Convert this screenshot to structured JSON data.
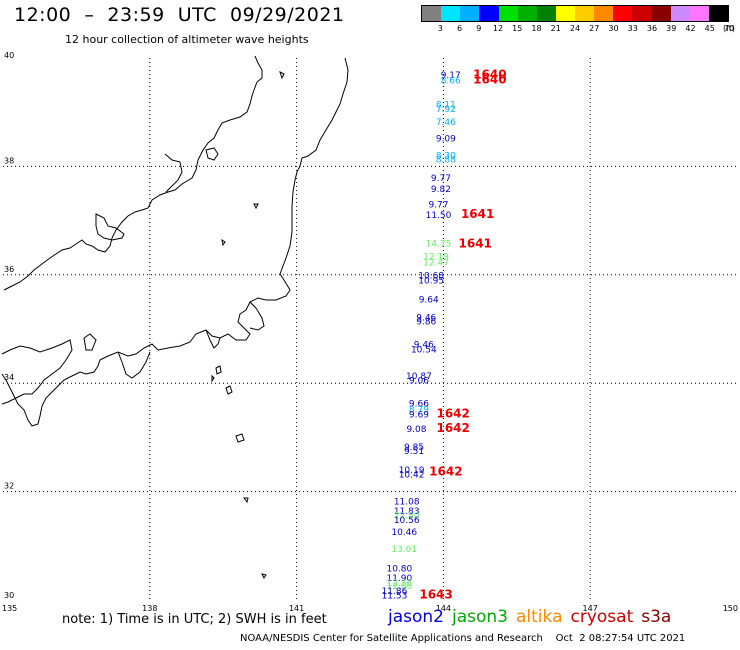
{
  "header": {
    "title": "12:00  –  23:59  UTC  09/29/2021",
    "subtitle": "12 hour collection of altimeter wave heights"
  },
  "legend": {
    "colors": [
      "#808080",
      "#00e5ff",
      "#00b0ff",
      "#0000ff",
      "#00e000",
      "#00b000",
      "#008000",
      "#ffff00",
      "#ffcc00",
      "#ff8800",
      "#ff0000",
      "#cc0000",
      "#880000",
      "#cc88ff",
      "#ff77ff",
      "#000000"
    ],
    "labels": [
      "3",
      "6",
      "9",
      "12",
      "15",
      "18",
      "21",
      "24",
      "27",
      "30",
      "33",
      "36",
      "39",
      "42",
      "45",
      "70",
      "(ft)"
    ]
  },
  "axes": {
    "lon_ticks": [
      "135",
      "138",
      "141",
      "144",
      "147",
      "150"
    ],
    "lat_ticks": [
      "30",
      "32",
      "34",
      "36",
      "38",
      "40"
    ]
  },
  "observations": [
    {
      "lat": 39.63,
      "lon": 144.15,
      "value": "9.17",
      "color": "#0000c8"
    },
    {
      "lat": 39.53,
      "lon": 144.15,
      "value": "8.66",
      "color": "#00b0ff"
    },
    {
      "lat": 39.09,
      "lon": 144.05,
      "value": "8.11",
      "color": "#00b0ff"
    },
    {
      "lat": 39.0,
      "lon": 144.05,
      "value": "7.92",
      "color": "#00b0ff"
    },
    {
      "lat": 38.76,
      "lon": 144.05,
      "value": "7.46",
      "color": "#00b0ff"
    },
    {
      "lat": 38.46,
      "lon": 144.05,
      "value": "9.09",
      "color": "#0000c8"
    },
    {
      "lat": 38.15,
      "lon": 144.05,
      "value": "8.30",
      "color": "#00b0ff"
    },
    {
      "lat": 38.07,
      "lon": 144.05,
      "value": "8.88",
      "color": "#00b0ff"
    },
    {
      "lat": 37.73,
      "lon": 143.95,
      "value": "9.77",
      "color": "#0000c8"
    },
    {
      "lat": 37.53,
      "lon": 143.95,
      "value": "9.82",
      "color": "#0000c8"
    },
    {
      "lat": 37.24,
      "lon": 143.9,
      "value": "9.77",
      "color": "#0000c8"
    },
    {
      "lat": 37.05,
      "lon": 143.9,
      "value": "11.50",
      "color": "#0000c8"
    },
    {
      "lat": 36.52,
      "lon": 143.9,
      "value": "14.75",
      "color": "#66ee66"
    },
    {
      "lat": 36.28,
      "lon": 143.85,
      "value": "12.19",
      "color": "#66ee66"
    },
    {
      "lat": 36.17,
      "lon": 143.85,
      "value": "12.47",
      "color": "#66ee66"
    },
    {
      "lat": 35.93,
      "lon": 143.75,
      "value": "10.68",
      "color": "#0000c8"
    },
    {
      "lat": 35.84,
      "lon": 143.75,
      "value": "10.95",
      "color": "#0000c8"
    },
    {
      "lat": 35.49,
      "lon": 143.7,
      "value": "9.64",
      "color": "#0000c8"
    },
    {
      "lat": 35.16,
      "lon": 143.65,
      "value": "9.46",
      "color": "#0000c8"
    },
    {
      "lat": 35.08,
      "lon": 143.65,
      "value": "9.86",
      "color": "#0000c8"
    },
    {
      "lat": 34.66,
      "lon": 143.6,
      "value": "9.46",
      "color": "#0000c8"
    },
    {
      "lat": 34.57,
      "lon": 143.6,
      "value": "10.54",
      "color": "#0000c8"
    },
    {
      "lat": 34.08,
      "lon": 143.5,
      "value": "10.87",
      "color": "#0000c8"
    },
    {
      "lat": 33.99,
      "lon": 143.5,
      "value": "9.06",
      "color": "#0000c8"
    },
    {
      "lat": 33.57,
      "lon": 143.5,
      "value": "9.66",
      "color": "#0000c8"
    },
    {
      "lat": 33.46,
      "lon": 143.5,
      "value": "8.79",
      "color": "#00b0ff"
    },
    {
      "lat": 33.37,
      "lon": 143.5,
      "value": "9.69",
      "color": "#0000c8"
    },
    {
      "lat": 33.1,
      "lon": 143.45,
      "value": "9.08",
      "color": "#0000c8"
    },
    {
      "lat": 32.77,
      "lon": 143.4,
      "value": "9.85",
      "color": "#0000c8"
    },
    {
      "lat": 32.69,
      "lon": 143.4,
      "value": "9.51",
      "color": "#0000c8"
    },
    {
      "lat": 32.34,
      "lon": 143.35,
      "value": "10.19",
      "color": "#0000c8"
    },
    {
      "lat": 32.26,
      "lon": 143.35,
      "value": "10.42",
      "color": "#0000c8"
    },
    {
      "lat": 31.76,
      "lon": 143.25,
      "value": "11.08",
      "color": "#0000c8"
    },
    {
      "lat": 31.59,
      "lon": 143.25,
      "value": "11.83",
      "color": "#0000c8"
    },
    {
      "lat": 31.5,
      "lon": 143.25,
      "value": "12.50",
      "color": "#66ee66"
    },
    {
      "lat": 31.42,
      "lon": 143.25,
      "value": "10.56",
      "color": "#0000c8"
    },
    {
      "lat": 31.2,
      "lon": 143.2,
      "value": "10.46",
      "color": "#0000c8"
    },
    {
      "lat": 30.89,
      "lon": 143.2,
      "value": "13.01",
      "color": "#66ee66"
    },
    {
      "lat": 30.53,
      "lon": 143.1,
      "value": "10.80",
      "color": "#0000c8"
    },
    {
      "lat": 30.35,
      "lon": 143.1,
      "value": "11.90",
      "color": "#0000c8"
    },
    {
      "lat": 30.26,
      "lon": 143.1,
      "value": "12.36",
      "color": "#66ee66"
    },
    {
      "lat": 30.2,
      "lon": 143.1,
      "value": "12.66",
      "color": "#66ee66"
    },
    {
      "lat": 30.11,
      "lon": 143.0,
      "value": "11.86",
      "color": "#0000c8"
    },
    {
      "lat": 30.03,
      "lon": 143.0,
      "value": "11.53",
      "color": "#0000c8"
    }
  ],
  "passes": [
    {
      "lat": 39.62,
      "lon": 144.95,
      "label": "1640"
    },
    {
      "lat": 39.53,
      "lon": 144.95,
      "label": "1640"
    },
    {
      "lat": 37.05,
      "lon": 144.7,
      "label": "1641"
    },
    {
      "lat": 36.5,
      "lon": 144.65,
      "label": "1641"
    },
    {
      "lat": 33.37,
      "lon": 144.2,
      "label": "1642"
    },
    {
      "lat": 33.1,
      "lon": 144.2,
      "label": "1642"
    },
    {
      "lat": 32.3,
      "lon": 144.05,
      "label": "1642"
    },
    {
      "lat": 30.03,
      "lon": 143.85,
      "label": "1643"
    }
  ],
  "note": "note:  1) Time is in UTC;  2) SWH is in feet",
  "satellites": [
    {
      "name": "jason2",
      "color": "#0000dd"
    },
    {
      "name": "jason3",
      "color": "#00aa00"
    },
    {
      "name": "altika",
      "color": "#ff8800"
    },
    {
      "name": "cryosat",
      "color": "#cc0000"
    },
    {
      "name": "s3a",
      "color": "#880000"
    }
  ],
  "footer": "NOAA/NESDIS Center for Satellite Applications and Research    Oct  2 08:27:54 UTC 2021"
}
